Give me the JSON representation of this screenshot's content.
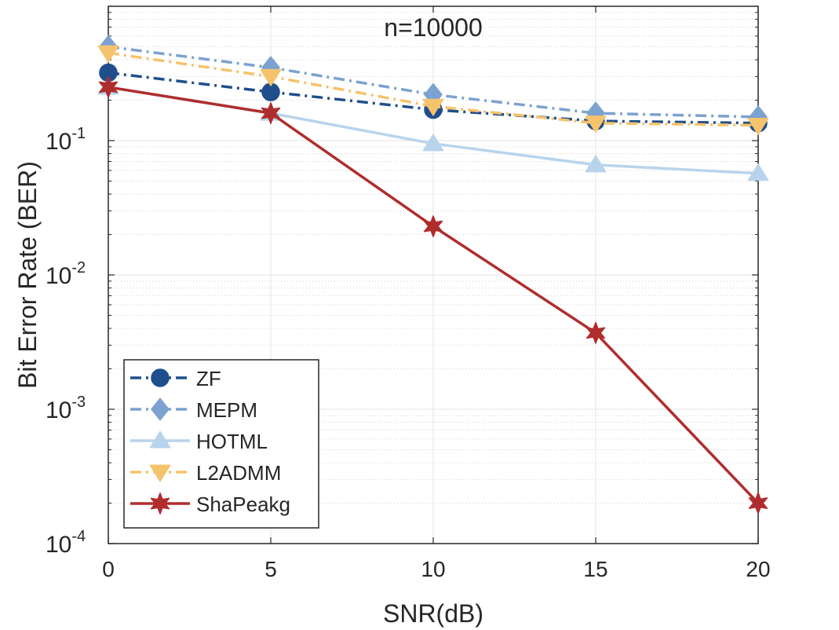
{
  "chart_data": {
    "type": "line",
    "title": "n=10000",
    "xlabel": "SNR(dB)",
    "ylabel": "Bit Error Rate (BER)",
    "yscale": "log",
    "grid": true,
    "legend_position": "bottom-left",
    "xlim": [
      0,
      20
    ],
    "ylim": [
      0.0001,
      1
    ],
    "x": [
      0,
      5,
      10,
      15,
      20
    ],
    "x_ticks": [
      {
        "v": 0,
        "label": "0"
      },
      {
        "v": 5,
        "label": "5"
      },
      {
        "v": 10,
        "label": "10"
      },
      {
        "v": 15,
        "label": "15"
      },
      {
        "v": 20,
        "label": "20"
      }
    ],
    "y_ticks": [
      {
        "exp": -4,
        "base": "10",
        "sup": "-4"
      },
      {
        "exp": -3,
        "base": "10",
        "sup": "-3"
      },
      {
        "exp": -2,
        "base": "10",
        "sup": "-2"
      },
      {
        "exp": -1,
        "base": "10",
        "sup": "-1"
      }
    ],
    "series": [
      {
        "name": "ZF",
        "values": [
          0.32,
          0.23,
          0.17,
          0.14,
          0.135
        ],
        "color": "#1f4e8c",
        "dash": "dashdot",
        "marker": "circle"
      },
      {
        "name": "MEPM",
        "values": [
          0.5,
          0.35,
          0.22,
          0.16,
          0.15
        ],
        "color": "#7ba2d0",
        "dash": "dashdot",
        "marker": "diamond"
      },
      {
        "name": "HOTML",
        "values": [
          0.25,
          0.16,
          0.095,
          0.066,
          0.057
        ],
        "color": "#b8d4ec",
        "dash": "solid",
        "marker": "triangle-up"
      },
      {
        "name": "L2ADMM",
        "values": [
          0.45,
          0.3,
          0.18,
          0.135,
          0.13
        ],
        "color": "#f5c36c",
        "dash": "dashdot",
        "marker": "triangle-down"
      },
      {
        "name": "ShaPeakg",
        "values": [
          0.25,
          0.16,
          0.023,
          0.0037,
          0.0002
        ],
        "color": "#b02d2d",
        "dash": "solid",
        "marker": "star"
      }
    ]
  }
}
